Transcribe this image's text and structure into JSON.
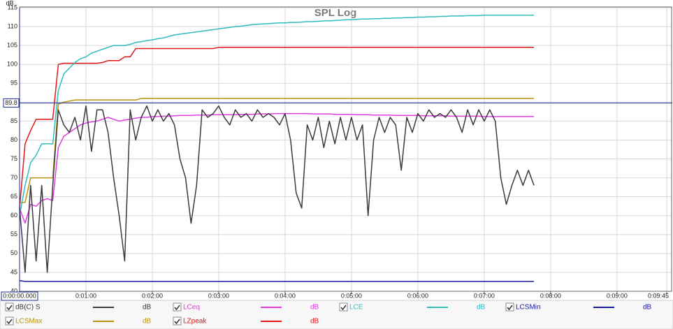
{
  "chart_data": {
    "type": "line",
    "title": "SPL Log",
    "ylabel": "dB",
    "xlim": [
      0,
      590
    ],
    "ylim": [
      40,
      115
    ],
    "xticks": [
      {
        "value": 60,
        "label": "0:01:00"
      },
      {
        "value": 120,
        "label": "0:02:00"
      },
      {
        "value": 180,
        "label": "0:03:00"
      },
      {
        "value": 240,
        "label": "0:04:00"
      },
      {
        "value": 300,
        "label": "0:05:00"
      },
      {
        "value": 360,
        "label": "0:06:00"
      },
      {
        "value": 420,
        "label": "0:07:00"
      },
      {
        "value": 480,
        "label": "0:08:00"
      },
      {
        "value": 540,
        "label": "0:09:00"
      },
      {
        "value": 585,
        "label": "0:09:45"
      }
    ],
    "yticks": [
      40,
      45,
      50,
      55,
      60,
      65,
      70,
      75,
      80,
      85,
      90,
      95,
      100,
      105,
      110,
      115
    ],
    "grid": true,
    "cursor": {
      "x": {
        "value": 0,
        "label": "0:00:00.000"
      },
      "y": 89.8,
      "color": "#1f2a9c"
    },
    "x": [
      0,
      5,
      10,
      15,
      20,
      25,
      30,
      35,
      40,
      45,
      50,
      55,
      60,
      65,
      70,
      75,
      80,
      85,
      90,
      95,
      100,
      105,
      110,
      115,
      120,
      125,
      130,
      135,
      140,
      145,
      150,
      155,
      160,
      165,
      170,
      175,
      180,
      185,
      190,
      195,
      200,
      205,
      210,
      215,
      220,
      225,
      230,
      235,
      240,
      245,
      250,
      255,
      260,
      265,
      270,
      275,
      280,
      285,
      290,
      295,
      300,
      305,
      310,
      315,
      320,
      325,
      330,
      335,
      340,
      345,
      350,
      355,
      360,
      365,
      370,
      375,
      380,
      385,
      390,
      395,
      400,
      405,
      410,
      415,
      420,
      425,
      430,
      435,
      440,
      445,
      450,
      455,
      460,
      465
    ],
    "series": [
      {
        "name": "dB(C) S",
        "unit": "dB",
        "color": "#3a3a3a",
        "values": [
          62,
          45,
          68,
          48,
          68,
          45,
          68,
          88,
          84,
          82,
          86,
          80,
          89,
          77,
          88,
          88,
          82,
          70,
          60,
          48,
          88,
          80,
          86,
          89,
          85,
          88,
          85,
          87,
          84,
          75,
          70,
          58,
          68,
          88,
          86,
          87,
          89,
          86,
          84,
          88,
          86,
          87,
          85,
          88,
          86,
          87,
          86,
          84,
          87,
          80,
          66,
          62,
          84,
          80,
          86,
          78,
          85,
          79,
          86,
          80,
          86,
          80,
          84,
          60,
          80,
          86,
          82,
          86,
          84,
          72,
          86,
          82,
          87,
          85,
          88,
          86,
          87,
          86,
          88,
          86,
          82,
          88,
          84,
          88,
          85,
          88,
          85,
          70,
          63,
          68,
          72,
          68,
          72,
          68
        ]
      },
      {
        "name": "LCeq",
        "unit": "dB",
        "color": "#e03ee0",
        "values": [
          62,
          58,
          63,
          62.5,
          64,
          64.5,
          64,
          78,
          81,
          82,
          83,
          84,
          84.5,
          84.8,
          85,
          85.5,
          86,
          85.5,
          85,
          85.3,
          85.5,
          85.8,
          86,
          86,
          86.2,
          86.2,
          86.3,
          86.3,
          86.4,
          86.5,
          86.5,
          86.5,
          86.6,
          86.6,
          86.6,
          86.7,
          86.7,
          86.7,
          86.7,
          86.7,
          86.8,
          86.8,
          86.8,
          86.9,
          86.9,
          86.9,
          87,
          87,
          87,
          87,
          87,
          87,
          87,
          86.9,
          86.9,
          86.9,
          86.9,
          86.8,
          86.8,
          86.8,
          86.8,
          86.7,
          86.7,
          86.7,
          86.6,
          86.6,
          86.6,
          86.6,
          86.5,
          86.5,
          86.5,
          86.5,
          86.5,
          86.4,
          86.4,
          86.4,
          86.4,
          86.4,
          86.3,
          86.3,
          86.3,
          86.3,
          86.3,
          86.3,
          86.2,
          86.2,
          86.2,
          86.2,
          86.2,
          86.2,
          86.2,
          86.2,
          86.2,
          86.2
        ]
      },
      {
        "name": "LCE",
        "unit": "dB",
        "color": "#2fbcbc",
        "values": [
          60,
          68,
          74,
          76,
          79,
          79,
          79,
          93,
          97.5,
          99,
          100.5,
          101.5,
          102,
          103,
          103.5,
          104,
          104.5,
          105,
          105,
          105,
          105.3,
          105.8,
          106,
          106.3,
          106.5,
          106.8,
          107,
          107.4,
          107.8,
          108,
          108.2,
          108.4,
          108.6,
          108.8,
          109,
          109.2,
          109.4,
          109.6,
          109.8,
          110,
          110.1,
          110.3,
          110.5,
          110.6,
          110.7,
          110.8,
          110.9,
          111,
          111,
          111.1,
          111.1,
          111.2,
          111.3,
          111.3,
          111.4,
          111.5,
          111.5,
          111.6,
          111.7,
          111.8,
          111.8,
          111.9,
          112,
          112,
          112.1,
          112.1,
          112.2,
          112.2,
          112.3,
          112.3,
          112.4,
          112.4,
          112.5,
          112.5,
          112.6,
          112.6,
          112.7,
          112.7,
          112.8,
          112.8,
          112.8,
          112.9,
          112.9,
          112.9,
          113,
          113,
          113,
          113,
          113,
          113,
          113,
          113,
          113,
          113
        ]
      },
      {
        "name": "LCSMin",
        "unit": "dB",
        "color": "#1a1aa0",
        "values": [
          42.8,
          42.6,
          42.6,
          42.6,
          42.6,
          42.6,
          42.6,
          42.6,
          42.6,
          42.6,
          42.6,
          42.6,
          42.6,
          42.6,
          42.6,
          42.6,
          42.6,
          42.6,
          42.6,
          42.6,
          42.6,
          42.6,
          42.6,
          42.6,
          42.6,
          42.6,
          42.6,
          42.6,
          42.6,
          42.6,
          42.6,
          42.6,
          42.6,
          42.6,
          42.6,
          42.6,
          42.6,
          42.6,
          42.6,
          42.6,
          42.6,
          42.6,
          42.6,
          42.6,
          42.6,
          42.6,
          42.6,
          42.6,
          42.6,
          42.6,
          42.6,
          42.6,
          42.6,
          42.6,
          42.6,
          42.6,
          42.6,
          42.6,
          42.6,
          42.6,
          42.6,
          42.6,
          42.6,
          42.6,
          42.6,
          42.6,
          42.6,
          42.6,
          42.6,
          42.6,
          42.6,
          42.6,
          42.6,
          42.6,
          42.6,
          42.6,
          42.6,
          42.6,
          42.6,
          42.6,
          42.6,
          42.6,
          42.6,
          42.6,
          42.6,
          42.6,
          42.6,
          42.6,
          42.6,
          42.6,
          42.6,
          42.6,
          42.6,
          42.6
        ]
      },
      {
        "name": "LCSMax",
        "unit": "dB",
        "color": "#b8940c",
        "values": [
          63.5,
          63.5,
          70,
          70,
          70,
          70,
          70,
          89.5,
          90,
          90.3,
          90.6,
          90.6,
          90.6,
          90.6,
          90.6,
          90.6,
          90.6,
          90.6,
          90.6,
          90.6,
          90.6,
          90.6,
          91,
          91,
          91,
          91,
          91,
          91,
          91,
          91,
          91,
          91,
          91,
          91,
          91,
          91,
          91,
          91,
          91,
          91,
          91,
          91,
          91,
          91,
          91,
          91,
          91,
          91,
          91,
          91,
          91,
          91,
          91,
          91,
          91,
          91,
          91,
          91,
          91,
          91,
          91,
          91,
          91,
          91,
          91,
          91,
          91,
          91,
          91,
          91,
          91,
          91,
          91,
          91,
          91,
          91,
          91,
          91,
          91,
          91,
          91,
          91,
          91,
          91,
          91,
          91,
          91,
          91,
          91,
          91,
          91,
          91,
          91,
          91
        ]
      },
      {
        "name": "LZpeak",
        "unit": "dB",
        "color": "#e01818",
        "values": [
          62,
          79,
          82.5,
          85.5,
          85.5,
          85.5,
          85.5,
          100,
          100.3,
          100.3,
          100.3,
          100.3,
          100.3,
          100.3,
          100.3,
          100.5,
          101,
          101,
          101,
          102,
          102,
          104.2,
          104.2,
          104.2,
          104.2,
          104.2,
          104.2,
          104.2,
          104.2,
          104.2,
          104.2,
          104.2,
          104.2,
          104.2,
          104.2,
          104.2,
          104.5,
          104.5,
          104.5,
          104.5,
          104.5,
          104.5,
          104.5,
          104.5,
          104.5,
          104.5,
          104.5,
          104.5,
          104.5,
          104.5,
          104.5,
          104.5,
          104.5,
          104.5,
          104.5,
          104.5,
          104.5,
          104.5,
          104.5,
          104.5,
          104.5,
          104.5,
          104.5,
          104.5,
          104.5,
          104.5,
          104.5,
          104.5,
          104.5,
          104.5,
          104.5,
          104.5,
          104.5,
          104.5,
          104.5,
          104.5,
          104.5,
          104.5,
          104.5,
          104.5,
          104.5,
          104.5,
          104.5,
          104.5,
          104.5,
          104.5,
          104.5,
          104.5,
          104.5,
          104.5,
          104.5,
          104.5,
          104.5,
          104.5
        ]
      }
    ]
  }
}
